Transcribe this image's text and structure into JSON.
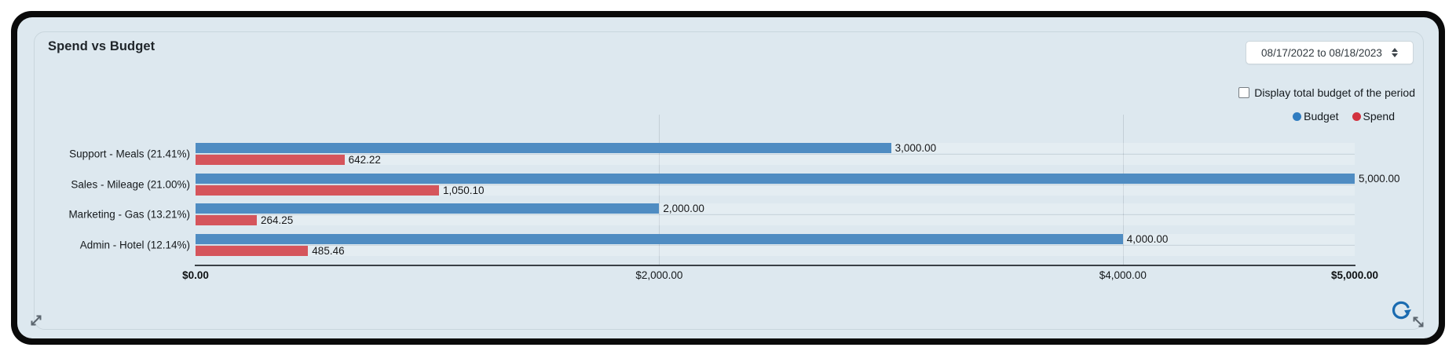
{
  "header": {
    "title": "Spend vs Budget",
    "date_range": "08/17/2022 to 08/18/2023",
    "checkbox_label": "Display total budget of the period",
    "checkbox_checked": false
  },
  "legend": [
    {
      "label": "Budget",
      "color": "#2f7cc0"
    },
    {
      "label": "Spend",
      "color": "#d2323f"
    }
  ],
  "chart_data": {
    "type": "bar",
    "orientation": "horizontal",
    "title": "Spend vs Budget",
    "categories": [
      "Support - Meals (21.41%)",
      "Sales - Mileage (21.00%)",
      "Marketing - Gas (13.21%)",
      "Admin - Hotel (12.14%)"
    ],
    "series": [
      {
        "name": "Budget",
        "color": "#4f8cc2",
        "values": [
          3000,
          5000,
          2000,
          4000
        ],
        "value_labels": [
          "3,000.00",
          "5,000.00",
          "2,000.00",
          "4,000.00"
        ]
      },
      {
        "name": "Spend",
        "color": "#d5555c",
        "values": [
          642.22,
          1050.1,
          264.25,
          485.46
        ],
        "value_labels": [
          "642.22",
          "1,050.10",
          "264.25",
          "485.46"
        ]
      }
    ],
    "xlim": [
      0,
      5000
    ],
    "x_ticks": [
      {
        "value": 0,
        "label": "$0.00",
        "bold": true
      },
      {
        "value": 2000,
        "label": "$2,000.00",
        "bold": false
      },
      {
        "value": 4000,
        "label": "$4,000.00",
        "bold": false
      },
      {
        "value": 5000,
        "label": "$5,000.00",
        "bold": true
      }
    ],
    "gridlines_at": [
      2000,
      4000
    ],
    "grid": true,
    "legend_position": "top-right"
  },
  "icons": {
    "select_updown": "up-down-triangles",
    "refresh": "circular-clockwise-arrow",
    "refresh_color": "#1a6bb0",
    "resize_sw": "diagonal-double-arrow-nesw",
    "resize_se": "diagonal-double-arrow-nwse",
    "resize_color": "#5c666f"
  }
}
